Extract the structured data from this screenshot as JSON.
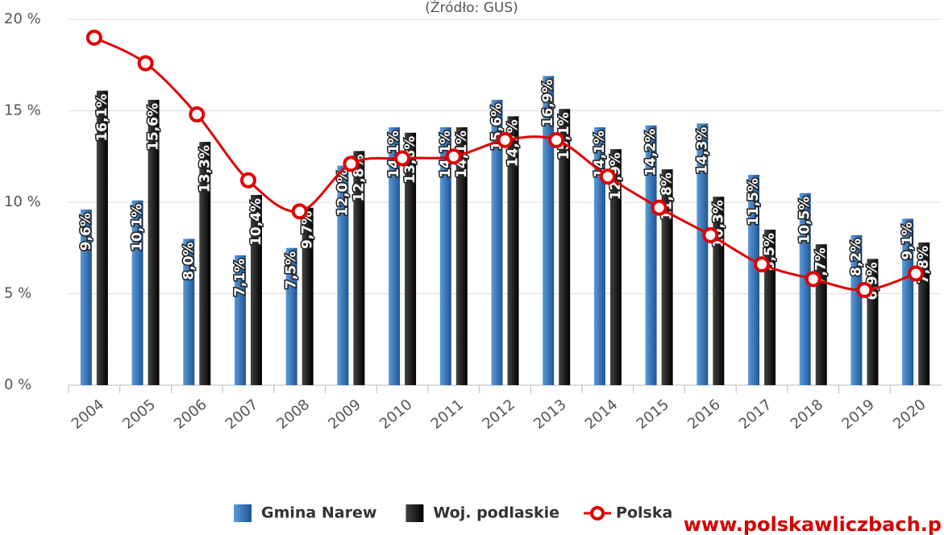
{
  "chart_data": {
    "type": "bar_line",
    "subtitle": "(Źródło: GUS)",
    "watermark": "www.polskawliczbach.p",
    "categories": [
      "2004",
      "2005",
      "2006",
      "2007",
      "2008",
      "2009",
      "2010",
      "2011",
      "2012",
      "2013",
      "2014",
      "2015",
      "2016",
      "2017",
      "2018",
      "2019",
      "2020"
    ],
    "series": [
      {
        "name": "Gmina Narew",
        "type": "bar",
        "color": "#3a7cc2",
        "values": [
          9.6,
          10.1,
          8.0,
          7.1,
          7.5,
          12.0,
          14.1,
          14.1,
          15.6,
          16.9,
          14.1,
          14.2,
          14.3,
          11.5,
          10.5,
          8.2,
          9.1
        ],
        "value_labels": [
          "9,6%",
          "10,1%",
          "8,0%",
          "7,1%",
          "7,5%",
          "12,0%",
          "14,1%",
          "14,1%",
          "15,6%",
          "16,9%",
          "14,1%",
          "14,2%",
          "14,3%",
          "11,5%",
          "10,5%",
          "8,2%",
          "9,1%"
        ]
      },
      {
        "name": "Woj. podlaskie",
        "type": "bar",
        "color": "#111111",
        "values": [
          16.1,
          15.6,
          13.3,
          10.4,
          9.7,
          12.8,
          13.8,
          14.1,
          14.7,
          15.1,
          12.9,
          11.8,
          10.3,
          8.5,
          7.7,
          6.9,
          7.8
        ],
        "value_labels": [
          "16,1%",
          "15,6%",
          "13,3%",
          "10,4%",
          "9,7%",
          "12,8%",
          "13,8%",
          "14,1%",
          "14,7%",
          "15,1%",
          "12,9%",
          "11,8%",
          "10,3%",
          "8,5%",
          "7,7%",
          "6,9%",
          "7,8%"
        ]
      },
      {
        "name": "Polska",
        "type": "line",
        "color": "#e00000",
        "values": [
          19.0,
          17.6,
          14.8,
          11.2,
          9.5,
          12.1,
          12.4,
          12.5,
          13.4,
          13.4,
          11.4,
          9.7,
          8.2,
          6.6,
          5.8,
          5.2,
          6.1
        ]
      }
    ],
    "ylim": [
      0,
      20
    ],
    "yticks": [
      {
        "value": 0,
        "label": "0 %"
      },
      {
        "value": 5,
        "label": "5 %"
      },
      {
        "value": 10,
        "label": "10 %"
      },
      {
        "value": 15,
        "label": "15 %"
      },
      {
        "value": 20,
        "label": "20 %"
      }
    ],
    "grid": true
  }
}
